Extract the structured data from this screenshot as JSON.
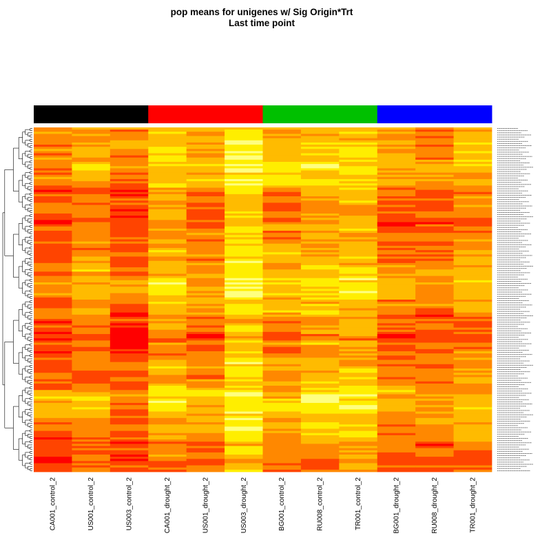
{
  "chart_data": {
    "type": "heatmap",
    "title": "pop means for unigenes w/ Sig Origin*Trt",
    "subtitle": "Last time point",
    "columns": [
      "CA001_control_2",
      "US001_control_2",
      "US003_control_2",
      "CA001_drought_2",
      "US001_drought_2",
      "US003_drought_2",
      "BG001_control_2",
      "RU008_control_2",
      "TR001_control_2",
      "BG001_drought_2",
      "RU008_drought_2",
      "TR001_drought_2"
    ],
    "column_groups": [
      {
        "color": "#000000",
        "span": 3
      },
      {
        "color": "#ff0000",
        "span": 3
      },
      {
        "color": "#00c000",
        "span": 3
      },
      {
        "color": "#0000ff",
        "span": 3
      }
    ],
    "row_count": 160,
    "colormap": [
      "#ff0000",
      "#ff4400",
      "#ff8800",
      "#ffbb00",
      "#ffee00",
      "#ffff80"
    ],
    "value_range": [
      0,
      1
    ],
    "dendrogram": "rows",
    "legend": "none"
  }
}
